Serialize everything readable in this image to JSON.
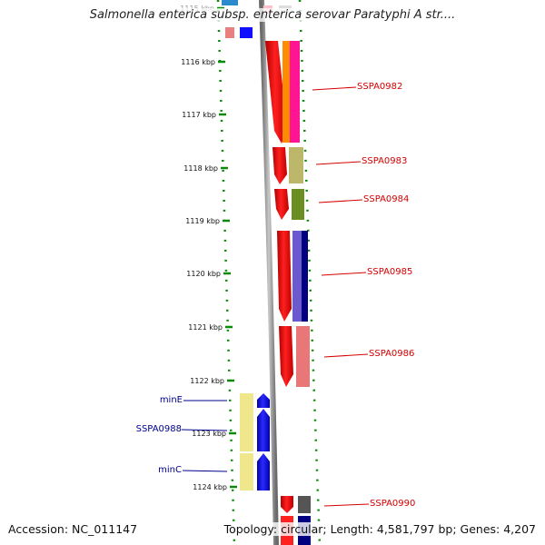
{
  "title": "Salmonella enterica subsp. enterica serovar Paratyphi A str....",
  "footer": {
    "accession": "Accession: NC_011147",
    "topology": "Topology: circular; Length: 4,581,797 bp; Genes: 4,207"
  },
  "colors": {
    "tick": "#0a8a0a",
    "label_red": "#d40000",
    "label_blue": "#00008b",
    "backbone": "#8c8c8c"
  },
  "ruler": [
    {
      "label": "1115 kbp"
    },
    {
      "label": "1116 kbp"
    },
    {
      "label": "1117 kbp"
    },
    {
      "label": "1118 kbp"
    },
    {
      "label": "1119 kbp"
    },
    {
      "label": "1120 kbp"
    },
    {
      "label": "1121 kbp"
    },
    {
      "label": "1122 kbp"
    },
    {
      "label": "1123 kbp"
    },
    {
      "label": "1124 kbp"
    }
  ],
  "gene_labels": [
    {
      "name": "SSPA0982",
      "side": "right"
    },
    {
      "name": "SSPA0983",
      "side": "right"
    },
    {
      "name": "SSPA0984",
      "side": "right"
    },
    {
      "name": "SSPA0985",
      "side": "right"
    },
    {
      "name": "SSPA0986",
      "side": "right"
    },
    {
      "name": "minE",
      "side": "left"
    },
    {
      "name": "SSPA0988",
      "side": "left"
    },
    {
      "name": "minC",
      "side": "left"
    },
    {
      "name": "SSPA0990",
      "side": "right"
    }
  ]
}
